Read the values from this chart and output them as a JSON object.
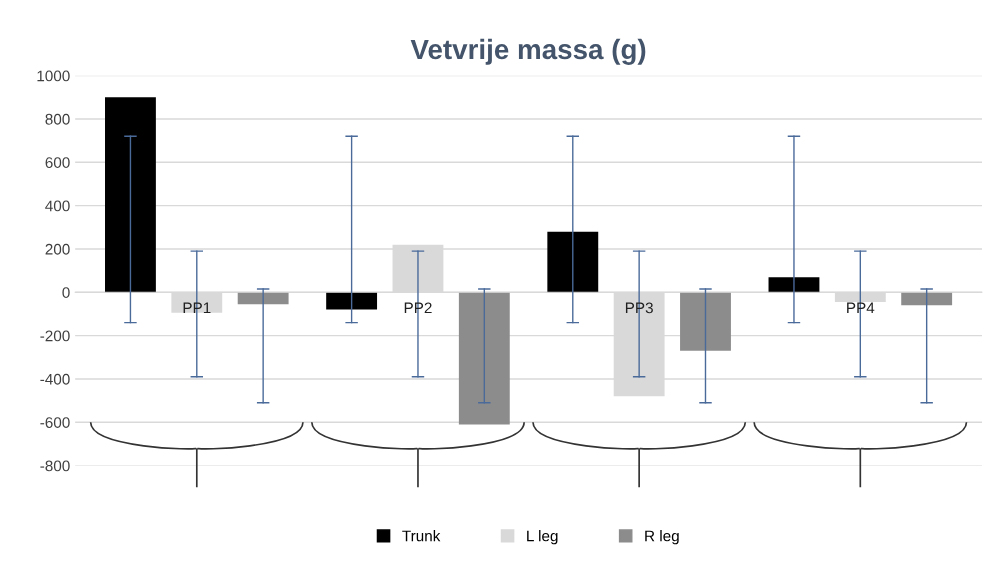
{
  "chart_data": {
    "type": "bar",
    "title": "Vetvrije massa (g)",
    "categories": [
      "PP1",
      "PP2",
      "PP3",
      "PP4"
    ],
    "series": [
      {
        "name": "Trunk",
        "color": "#000000",
        "values": [
          900,
          -80,
          280,
          70
        ],
        "errors": [
          [
            -140,
            720
          ],
          [
            -140,
            720
          ],
          [
            -140,
            720
          ],
          [
            -140,
            720
          ]
        ]
      },
      {
        "name": "L leg",
        "color": "#d9d9d9",
        "values": [
          -95,
          220,
          -480,
          -45
        ],
        "errors": [
          [
            -390,
            190
          ],
          [
            -390,
            190
          ],
          [
            -390,
            190
          ],
          [
            -390,
            190
          ]
        ]
      },
      {
        "name": "R leg",
        "color": "#8c8c8c",
        "values": [
          -55,
          -610,
          -270,
          -60
        ],
        "errors": [
          [
            -510,
            15
          ],
          [
            -510,
            15
          ],
          [
            -510,
            15
          ],
          [
            -510,
            15
          ]
        ]
      }
    ],
    "ylim": [
      -800,
      1000
    ],
    "yticks": [
      -800,
      -600,
      -400,
      -200,
      0,
      200,
      400,
      600,
      800,
      1000
    ],
    "grid": "y",
    "legend": "bottom"
  }
}
